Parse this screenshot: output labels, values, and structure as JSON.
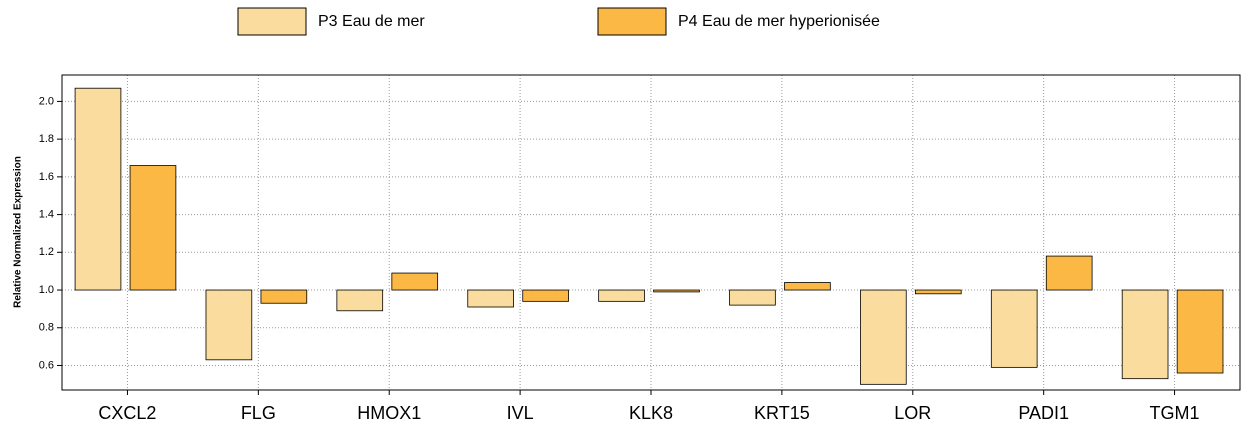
{
  "chart_data": {
    "type": "bar",
    "y_label": "Relative Normalized Expression",
    "categories": [
      "CXCL2",
      "FLG",
      "HMOX1",
      "IVL",
      "KLK8",
      "KRT15",
      "LOR",
      "PADI1",
      "TGM1"
    ],
    "series": [
      {
        "name": "P3 Eau de mer",
        "color": "#f9dc9e",
        "values": [
          2.07,
          0.63,
          0.89,
          0.91,
          0.94,
          0.92,
          0.5,
          0.59,
          0.53
        ]
      },
      {
        "name": "P4 Eau de mer hyperionisée",
        "color": "#fbb845",
        "values": [
          1.66,
          0.93,
          1.09,
          0.94,
          0.99,
          1.04,
          0.98,
          1.18,
          0.56
        ]
      }
    ],
    "baseline": 1.0,
    "ylim": [
      0.47,
      2.14
    ],
    "yticks": [
      {
        "value": 0.6,
        "label": "0.6"
      },
      {
        "value": 0.8,
        "label": "0.8"
      },
      {
        "value": 1.0,
        "label": "1.0"
      },
      {
        "value": 1.2,
        "label": "1.2"
      },
      {
        "value": 1.4,
        "label": "1.4"
      },
      {
        "value": 1.6,
        "label": "1.6"
      },
      {
        "value": 1.8,
        "label": "1.8"
      },
      {
        "value": 2.0,
        "label": "2.0"
      }
    ],
    "grid": true,
    "legend": "top"
  }
}
